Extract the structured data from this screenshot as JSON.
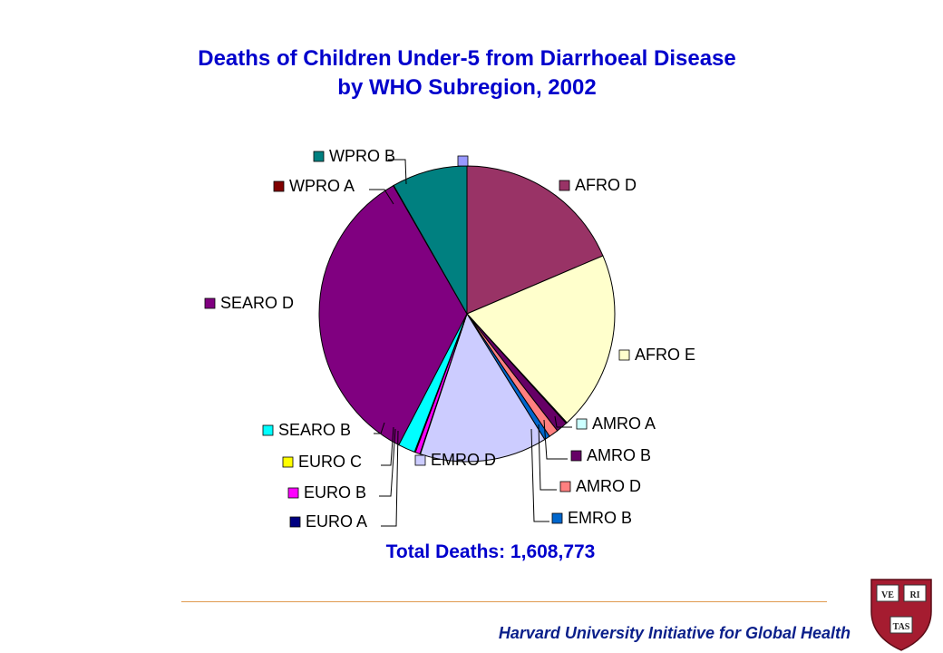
{
  "chart_data": {
    "type": "pie",
    "title_line1": "Deaths of Children Under-5 from Diarrhoeal Disease",
    "title_line2": "by WHO Subregion, 2002",
    "total_label": "Total Deaths: 1,608,773",
    "series": [
      {
        "name": "AFRO D",
        "value": 18.0,
        "color": "#993366"
      },
      {
        "name": "AFRO E",
        "value": 19.0,
        "color": "#ffffcc"
      },
      {
        "name": "AMRO A",
        "value": 0.1,
        "color": "#ccffff"
      },
      {
        "name": "AMRO B",
        "value": 1.2,
        "color": "#660066"
      },
      {
        "name": "AMRO D",
        "value": 1.0,
        "color": "#ff8080"
      },
      {
        "name": "EMRO B",
        "value": 0.6,
        "color": "#0066cc"
      },
      {
        "name": "EMRO D",
        "value": 13.5,
        "color": "#ccccff"
      },
      {
        "name": "EURO A",
        "value": 0.05,
        "color": "#000080"
      },
      {
        "name": "EURO B",
        "value": 0.5,
        "color": "#ff00ff"
      },
      {
        "name": "EURO C",
        "value": 0.1,
        "color": "#ffff00"
      },
      {
        "name": "SEARO B",
        "value": 1.8,
        "color": "#00ffff"
      },
      {
        "name": "SEARO D",
        "value": 33.0,
        "color": "#800080"
      },
      {
        "name": "WPRO A",
        "value": 0.05,
        "color": "#800000"
      },
      {
        "name": "WPRO B",
        "value": 8.0,
        "color": "#008080"
      },
      {
        "name": "",
        "value": 0.0,
        "color": "#9999ff"
      }
    ]
  },
  "footer": {
    "text": "Harvard University Initiative for Global Health",
    "logo_text": "VERITAS",
    "shield_color": "#a51c30"
  }
}
